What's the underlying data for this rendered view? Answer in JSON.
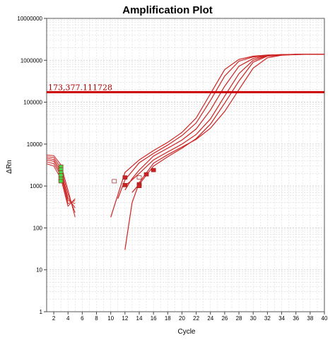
{
  "chart_data": {
    "type": "line",
    "title": "Amplification Plot",
    "xlabel": "Cycle",
    "ylabel": "ΔRn",
    "xlim": [
      1,
      40
    ],
    "ylim": [
      1,
      10000000
    ],
    "y_scale": "log",
    "grid": true,
    "x_ticks": [
      2,
      4,
      6,
      8,
      10,
      12,
      14,
      16,
      18,
      20,
      22,
      24,
      26,
      28,
      30,
      32,
      34,
      36,
      38,
      40
    ],
    "y_ticks": [
      1,
      10,
      100,
      1000,
      10000,
      100000,
      1000000,
      10000000
    ],
    "y_tick_labels": [
      "1",
      "10",
      "100",
      "1000",
      "10000",
      "100000",
      "1000000",
      "10000000"
    ],
    "threshold": {
      "value": 173377.111728,
      "label": "173,377.111728",
      "color": "#cc0000"
    },
    "series_color": "#cc2222",
    "series": [
      {
        "x": [
          1,
          2,
          3,
          4,
          5
        ],
        "y": [
          5500,
          5300,
          3200,
          800,
          180
        ],
        "x2": [
          10,
          12,
          14,
          16,
          18,
          20,
          22,
          24,
          26,
          28,
          30,
          32,
          34,
          36,
          38,
          40
        ],
        "y2": [
          180,
          2100,
          4200,
          7000,
          11000,
          19000,
          42000,
          160000,
          600000,
          1050000,
          1250000,
          1330000,
          1370000,
          1390000,
          1400000,
          1400000
        ]
      },
      {
        "x": [
          1,
          2,
          3,
          4,
          5
        ],
        "y": [
          5000,
          4800,
          2700,
          650,
          230
        ],
        "x2": [
          11,
          12,
          14,
          16,
          18,
          20,
          22,
          24,
          26,
          28,
          30,
          32,
          34,
          36,
          38,
          40
        ],
        "y2": [
          500,
          1400,
          3600,
          6000,
          9500,
          16000,
          32000,
          110000,
          420000,
          950000,
          1200000,
          1320000,
          1360000,
          1380000,
          1390000,
          1400000
        ]
      },
      {
        "x": [
          1,
          2,
          3,
          4,
          5
        ],
        "y": [
          4600,
          4300,
          2300,
          520,
          300
        ],
        "x2": [
          12,
          13,
          14,
          16,
          18,
          20,
          22,
          24,
          26,
          28,
          30,
          32,
          34,
          36,
          38,
          40
        ],
        "y2": [
          800,
          1500,
          2400,
          5200,
          8000,
          12500,
          23000,
          65000,
          240000,
          720000,
          1100000,
          1300000,
          1360000,
          1380000,
          1390000,
          1400000
        ]
      },
      {
        "x": [
          1,
          2,
          3,
          4,
          5
        ],
        "y": [
          4200,
          3900,
          2000,
          450,
          380
        ],
        "x2": [
          12,
          13,
          14,
          16,
          18,
          20,
          22,
          24,
          26,
          28,
          30,
          32,
          34,
          36,
          38,
          40
        ],
        "y2": [
          1000,
          1400,
          2000,
          4200,
          6500,
          10000,
          17000,
          40000,
          140000,
          480000,
          1000000,
          1280000,
          1350000,
          1380000,
          1390000,
          1400000
        ]
      },
      {
        "x": [
          1,
          2,
          3,
          4,
          5
        ],
        "y": [
          3800,
          3400,
          1800,
          380,
          450
        ],
        "x2": [
          12,
          13,
          14,
          16,
          18,
          20,
          22,
          24,
          26,
          28,
          30,
          32,
          34,
          36,
          38,
          40
        ],
        "y2": [
          30,
          400,
          1200,
          3500,
          5600,
          8500,
          13000,
          24000,
          60000,
          200000,
          650000,
          1150000,
          1320000,
          1370000,
          1390000,
          1400000
        ]
      },
      {
        "x": [
          1,
          2,
          3,
          4,
          5
        ],
        "y": [
          3400,
          3000,
          1500,
          330,
          500
        ],
        "x2": [
          13,
          14,
          16,
          18,
          20,
          22,
          24,
          26,
          28,
          30,
          32,
          34,
          36,
          38,
          40
        ],
        "y2": [
          700,
          1100,
          3000,
          5000,
          8000,
          13500,
          30000,
          95000,
          320000,
          900000,
          1250000,
          1340000,
          1380000,
          1390000,
          1400000
        ]
      }
    ],
    "markers": [
      {
        "x": 3,
        "y": 2900,
        "color": "#44dd44"
      },
      {
        "x": 3,
        "y": 2500,
        "color": "#44dd44"
      },
      {
        "x": 3,
        "y": 2100,
        "color": "#44dd44"
      },
      {
        "x": 3,
        "y": 1800,
        "color": "#44dd44"
      },
      {
        "x": 3,
        "y": 1500,
        "color": "#44dd44"
      },
      {
        "x": 3,
        "y": 1300,
        "color": "#44dd44"
      },
      {
        "x": 10.5,
        "y": 1300,
        "color": "#ffffff"
      },
      {
        "x": 12,
        "y": 1600,
        "color": "#cc2222"
      },
      {
        "x": 12,
        "y": 1050,
        "color": "#cc2222"
      },
      {
        "x": 14,
        "y": 1600,
        "color": "#ffffff"
      },
      {
        "x": 14,
        "y": 1100,
        "color": "#cc2222"
      },
      {
        "x": 14,
        "y": 1000,
        "color": "#cc2222"
      },
      {
        "x": 15,
        "y": 1900,
        "color": "#cc2222"
      },
      {
        "x": 16,
        "y": 2400,
        "color": "#cc2222"
      }
    ]
  }
}
